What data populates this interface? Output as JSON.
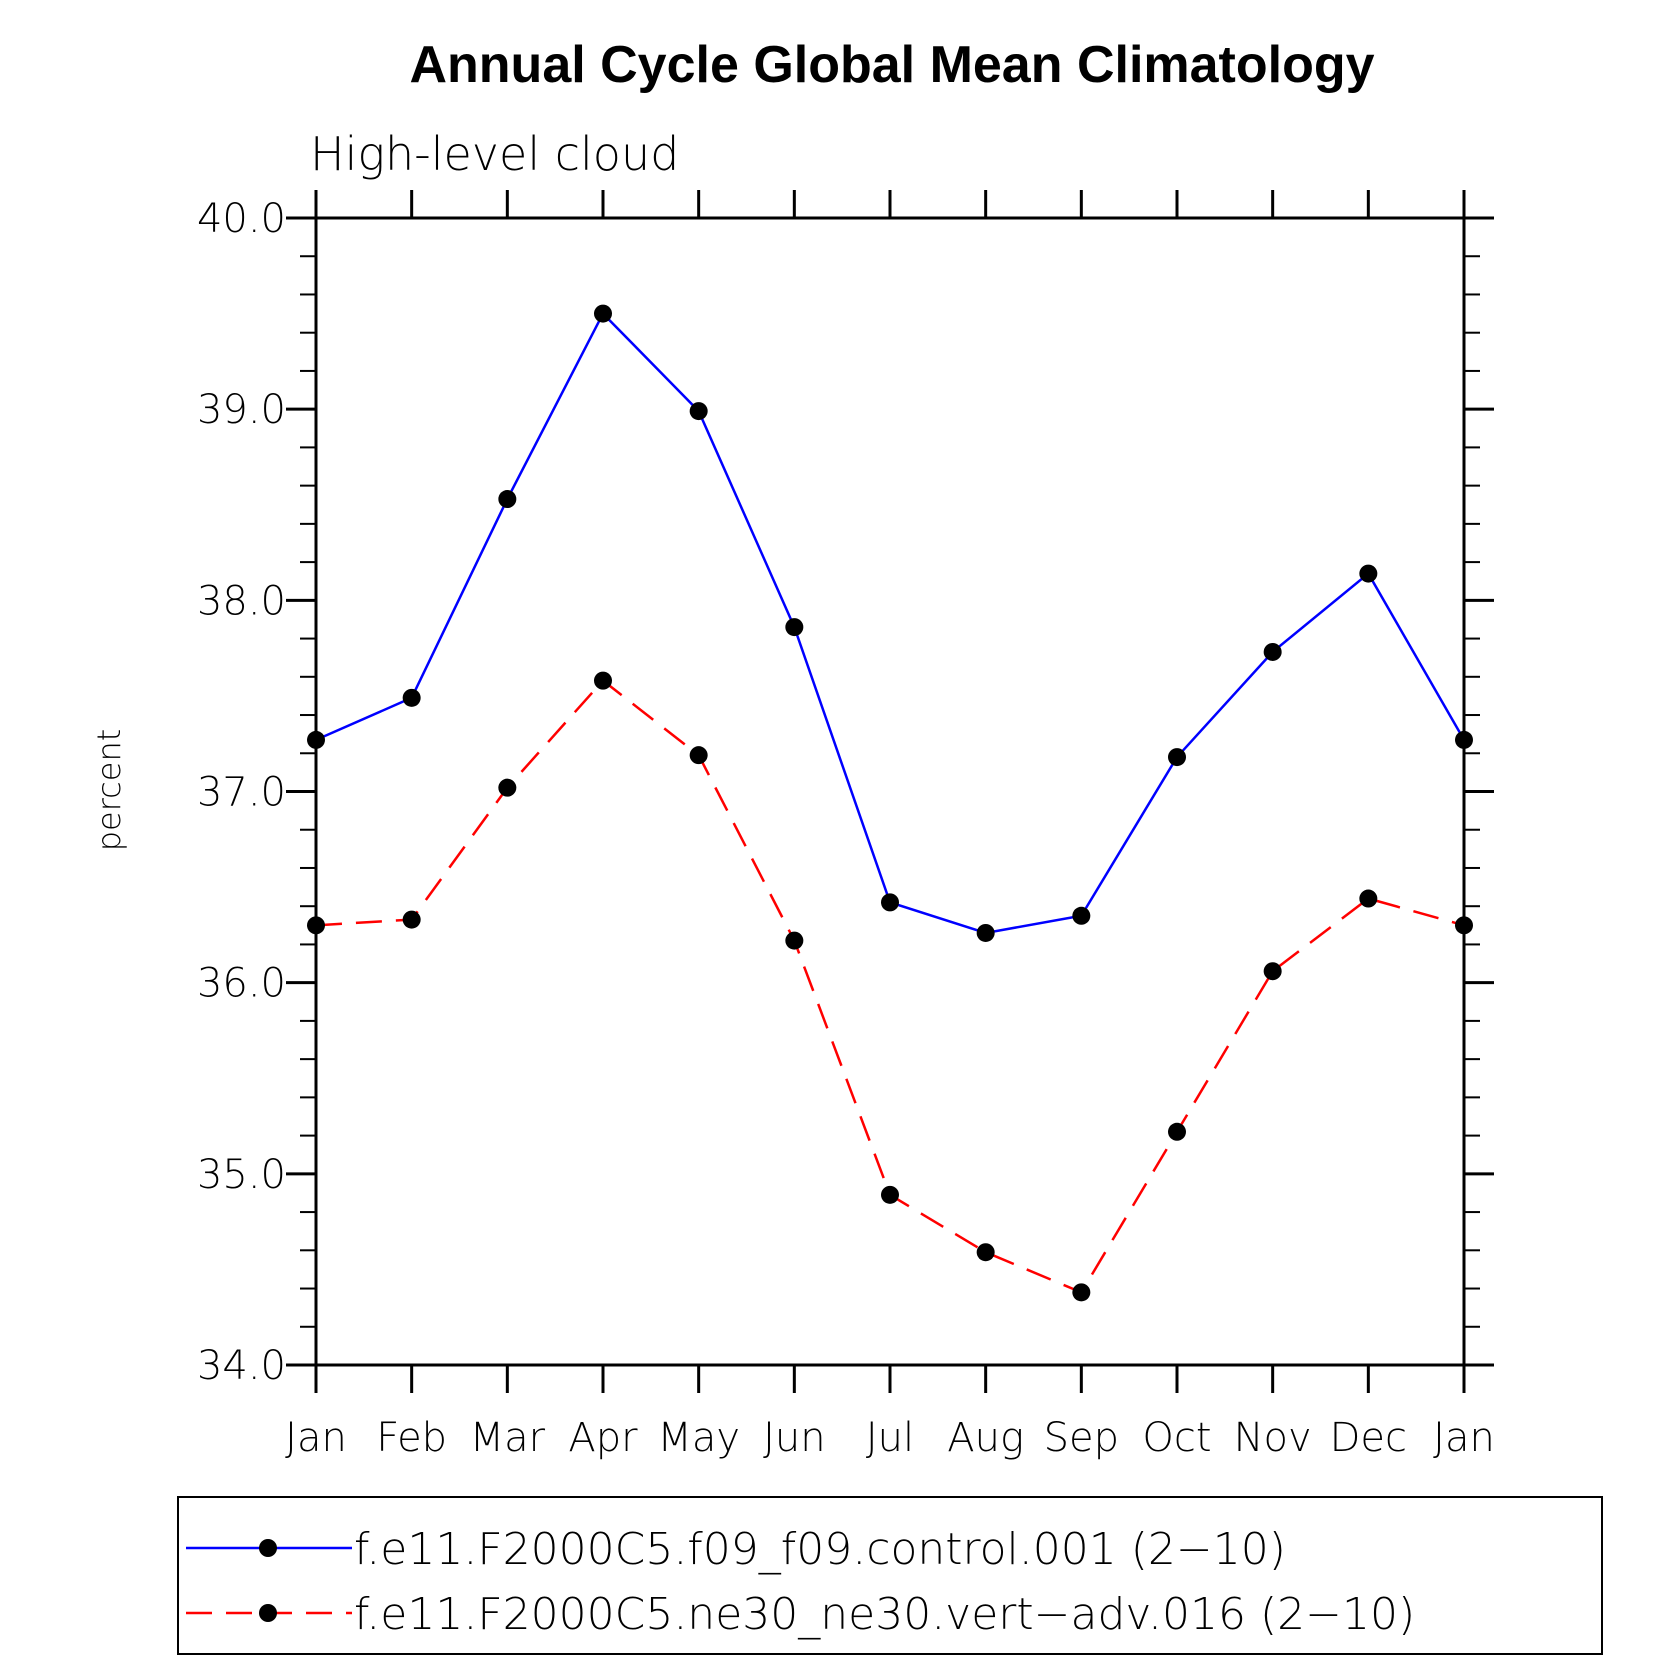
{
  "chart_data": {
    "type": "line",
    "title": "Annual Cycle Global Mean Climatology",
    "subtitle": "High-level cloud",
    "xlabel": "",
    "ylabel": "percent",
    "ylim": [
      34.0,
      40.0
    ],
    "yticks": [
      "34.0",
      "35.0",
      "36.0",
      "37.0",
      "38.0",
      "39.0",
      "40.0"
    ],
    "categories": [
      "Jan",
      "Feb",
      "Mar",
      "Apr",
      "May",
      "Jun",
      "Jul",
      "Aug",
      "Sep",
      "Oct",
      "Nov",
      "Dec",
      "Jan"
    ],
    "series": [
      {
        "name": "f.e11.F2000C5.f09_f09.control.001 (2−10)",
        "color": "#0000ff",
        "style": "solid",
        "values": [
          37.27,
          37.49,
          38.53,
          39.5,
          38.99,
          37.86,
          36.42,
          36.26,
          36.35,
          37.18,
          37.73,
          38.14,
          37.27
        ]
      },
      {
        "name": "f.e11.F2000C5.ne30_ne30.vert−adv.016 (2−10)",
        "color": "#ff0000",
        "style": "dashed",
        "values": [
          36.3,
          36.33,
          37.02,
          37.58,
          37.19,
          36.22,
          34.89,
          34.59,
          34.38,
          35.22,
          36.06,
          36.44,
          36.3
        ]
      }
    ],
    "legend": "bottom"
  }
}
